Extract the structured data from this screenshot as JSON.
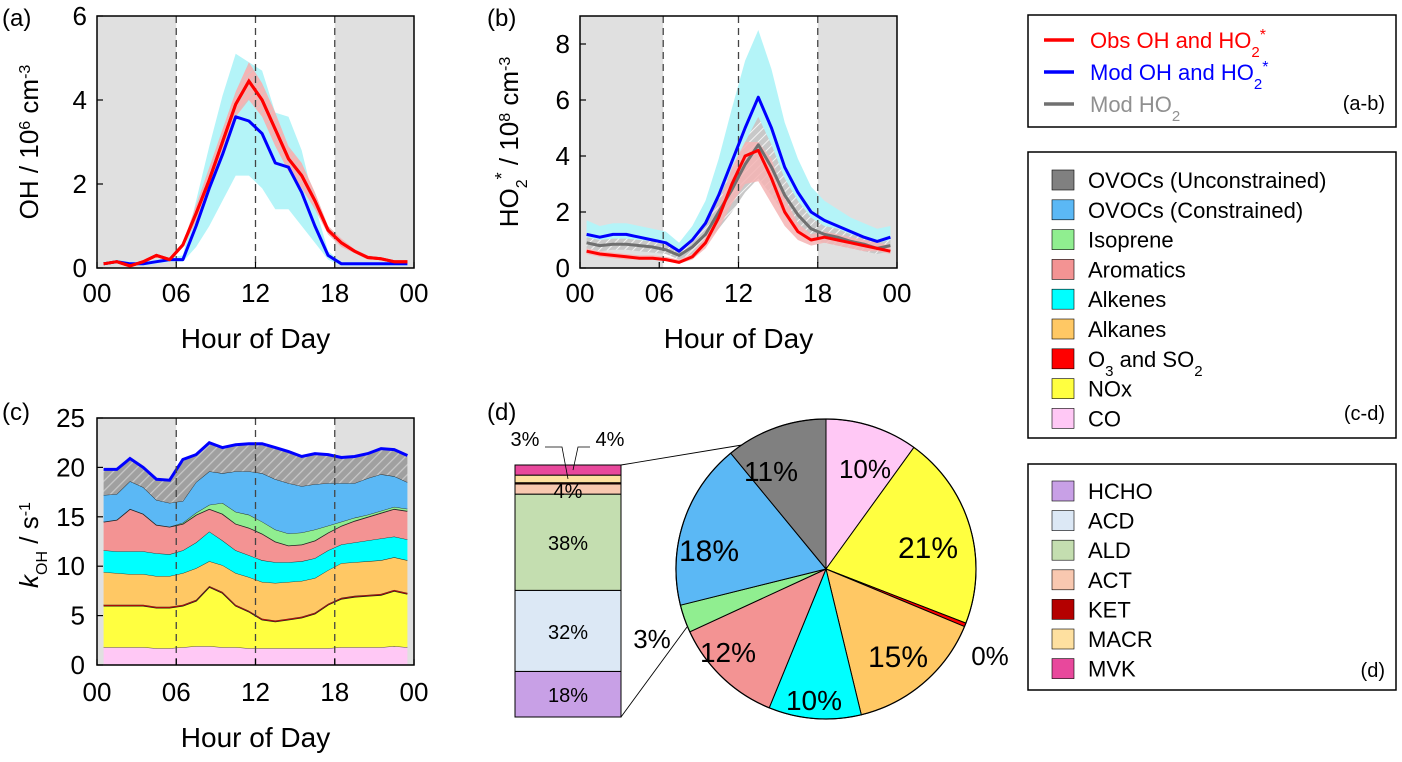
{
  "chart_data": [
    {
      "panel": "(a)",
      "type": "line",
      "ylabel_main": "OH / 10",
      "ylabel_exp": "6",
      "ylabel_unit": " cm",
      "ylabel_unit_exp": "-3",
      "xlabel": "Hour of Day",
      "xticks": [
        "00",
        "06",
        "12",
        "18",
        "00"
      ],
      "yticks": [
        "0",
        "2",
        "4",
        "6"
      ],
      "xlim": [
        0,
        24
      ],
      "ylim": [
        0,
        6
      ],
      "night_shading": [
        [
          0,
          6
        ],
        [
          18,
          24
        ]
      ],
      "dashed_lines_at": [
        6,
        12,
        18
      ],
      "series": [
        {
          "id": "obs",
          "x": [
            0.5,
            1.5,
            2.5,
            3.5,
            4.5,
            5.5,
            6.5,
            7.5,
            8.5,
            9.5,
            10.5,
            11.5,
            12.5,
            13.5,
            14.5,
            15.5,
            16.5,
            17.5,
            18.5,
            19.5,
            20.5,
            21.5,
            22.5,
            23.5
          ],
          "y": [
            0.1,
            0.15,
            0.05,
            0.15,
            0.3,
            0.2,
            0.55,
            1.3,
            2.1,
            3.0,
            3.9,
            4.45,
            4.0,
            3.3,
            2.6,
            2.2,
            1.6,
            0.9,
            0.6,
            0.4,
            0.25,
            0.22,
            0.15,
            0.15
          ],
          "band_low": [
            0.1,
            0.15,
            0.05,
            0.15,
            0.3,
            0.2,
            0.5,
            1.1,
            1.9,
            2.8,
            3.6,
            4.0,
            3.6,
            2.9,
            2.3,
            1.9,
            1.4,
            0.8,
            0.5,
            0.35,
            0.2,
            0.2,
            0.12,
            0.12
          ],
          "band_high": [
            0.1,
            0.15,
            0.05,
            0.15,
            0.3,
            0.2,
            0.6,
            1.5,
            2.4,
            3.3,
            4.2,
            4.9,
            4.4,
            3.7,
            2.9,
            2.5,
            1.8,
            1.0,
            0.7,
            0.45,
            0.3,
            0.25,
            0.18,
            0.18
          ]
        },
        {
          "id": "mod",
          "x": [
            0.5,
            1.5,
            2.5,
            3.5,
            4.5,
            5.5,
            6.5,
            7.5,
            8.5,
            9.5,
            10.5,
            11.5,
            12.5,
            13.5,
            14.5,
            15.5,
            16.5,
            17.5,
            18.5,
            19.5,
            20.5,
            21.5,
            22.5,
            23.5
          ],
          "y": [
            0.1,
            0.15,
            0.1,
            0.1,
            0.15,
            0.2,
            0.2,
            1.0,
            1.9,
            2.7,
            3.6,
            3.5,
            3.2,
            2.5,
            2.4,
            1.8,
            1.0,
            0.3,
            0.1,
            0.1,
            0.1,
            0.1,
            0.1,
            0.1
          ],
          "band_low": [
            0.05,
            0.1,
            0.05,
            0.05,
            0.1,
            0.15,
            0.15,
            0.5,
            1.0,
            1.6,
            2.2,
            2.2,
            1.9,
            1.4,
            1.4,
            1.0,
            0.6,
            0.2,
            0.05,
            0.05,
            0.05,
            0.05,
            0.05,
            0.05
          ],
          "band_high": [
            0.15,
            0.2,
            0.15,
            0.15,
            0.2,
            0.25,
            0.3,
            1.6,
            2.9,
            4.1,
            5.1,
            4.9,
            4.7,
            3.7,
            3.6,
            2.8,
            1.5,
            0.4,
            0.15,
            0.15,
            0.15,
            0.15,
            0.15,
            0.15
          ]
        }
      ]
    },
    {
      "panel": "(b)",
      "type": "line",
      "ylabel_main": "HO",
      "ylabel_sub": "2",
      "ylabel_sup": "*",
      "ylabel_rest": " / 10",
      "ylabel_exp": "8",
      "ylabel_unit": " cm",
      "ylabel_unit_exp": "-3",
      "xlabel": "Hour of Day",
      "xticks": [
        "00",
        "06",
        "12",
        "18",
        "00"
      ],
      "yticks": [
        "0",
        "2",
        "4",
        "6",
        "8"
      ],
      "xlim": [
        0,
        24
      ],
      "ylim": [
        0,
        9
      ],
      "night_shading": [
        [
          0,
          6.3
        ],
        [
          18,
          24
        ]
      ],
      "dashed_lines_at": [
        6.3,
        12,
        18
      ],
      "series": [
        {
          "id": "obs",
          "x": [
            0.5,
            1.5,
            2.5,
            3.5,
            4.5,
            5.5,
            6.5,
            7.5,
            8.5,
            9.5,
            10.5,
            11.5,
            12.5,
            13.5,
            14.5,
            15.5,
            16.5,
            17.5,
            18.5,
            19.5,
            20.5,
            21.5,
            22.5,
            23.5
          ],
          "y": [
            0.6,
            0.5,
            0.45,
            0.4,
            0.35,
            0.35,
            0.3,
            0.2,
            0.4,
            0.9,
            1.8,
            3.0,
            4.0,
            4.2,
            3.2,
            2.0,
            1.3,
            1.0,
            1.1,
            1.0,
            0.9,
            0.8,
            0.7,
            0.6
          ],
          "band_low": [
            0.5,
            0.4,
            0.35,
            0.3,
            0.3,
            0.3,
            0.25,
            0.15,
            0.3,
            0.7,
            1.4,
            2.3,
            3.0,
            3.1,
            2.3,
            1.5,
            1.0,
            0.8,
            0.9,
            0.8,
            0.7,
            0.6,
            0.6,
            0.5
          ],
          "band_high": [
            0.7,
            0.6,
            0.55,
            0.5,
            0.45,
            0.45,
            0.4,
            0.3,
            0.5,
            1.1,
            2.2,
            3.6,
            4.5,
            4.5,
            3.9,
            2.5,
            1.6,
            1.2,
            1.3,
            1.2,
            1.1,
            1.0,
            0.9,
            0.8
          ]
        },
        {
          "id": "mod",
          "x": [
            0.5,
            1.5,
            2.5,
            3.5,
            4.5,
            5.5,
            6.5,
            7.5,
            8.5,
            9.5,
            10.5,
            11.5,
            12.5,
            13.5,
            14.5,
            15.5,
            16.5,
            17.5,
            18.5,
            19.5,
            20.5,
            21.5,
            22.5,
            23.5
          ],
          "y": [
            1.2,
            1.1,
            1.2,
            1.2,
            1.1,
            1.0,
            0.9,
            0.6,
            1.0,
            1.6,
            2.6,
            3.8,
            5.0,
            6.1,
            5.0,
            3.6,
            2.7,
            2.0,
            1.7,
            1.5,
            1.3,
            1.1,
            0.95,
            1.1
          ],
          "band_low": [
            0.9,
            0.8,
            0.9,
            0.9,
            0.8,
            0.75,
            0.65,
            0.4,
            0.7,
            1.1,
            1.8,
            2.6,
            3.5,
            4.3,
            3.5,
            2.5,
            1.9,
            1.4,
            1.2,
            1.1,
            1.0,
            0.8,
            0.7,
            0.8
          ],
          "band_high": [
            1.7,
            1.5,
            1.6,
            1.6,
            1.5,
            1.4,
            1.3,
            0.9,
            1.5,
            2.4,
            3.9,
            5.7,
            7.4,
            8.5,
            7.1,
            5.2,
            3.9,
            2.9,
            2.4,
            2.1,
            1.8,
            1.6,
            1.4,
            1.5
          ]
        },
        {
          "id": "modho2",
          "x": [
            0.5,
            1.5,
            2.5,
            3.5,
            4.5,
            5.5,
            6.5,
            7.5,
            8.5,
            9.5,
            10.5,
            11.5,
            12.5,
            13.5,
            14.5,
            15.5,
            16.5,
            17.5,
            18.5,
            19.5,
            20.5,
            21.5,
            22.5,
            23.5
          ],
          "y": [
            0.9,
            0.8,
            0.85,
            0.85,
            0.8,
            0.75,
            0.65,
            0.45,
            0.75,
            1.2,
            2.0,
            2.8,
            3.7,
            4.4,
            3.6,
            2.6,
            1.9,
            1.4,
            1.2,
            1.1,
            0.95,
            0.85,
            0.7,
            0.8
          ],
          "band_low": [
            0.7,
            0.6,
            0.65,
            0.65,
            0.6,
            0.55,
            0.5,
            0.3,
            0.5,
            0.9,
            1.4,
            2.0,
            2.7,
            3.2,
            2.6,
            1.9,
            1.4,
            1.0,
            0.9,
            0.8,
            0.7,
            0.6,
            0.5,
            0.6
          ],
          "band_high": [
            1.1,
            1.0,
            1.05,
            1.05,
            1.0,
            0.95,
            0.85,
            0.6,
            0.95,
            1.5,
            2.5,
            3.5,
            4.5,
            5.4,
            4.4,
            3.2,
            2.4,
            1.8,
            1.5,
            1.4,
            1.2,
            1.1,
            0.9,
            1.0
          ]
        }
      ]
    },
    {
      "panel": "(c)",
      "type": "area",
      "ylabel_k": "k",
      "ylabel_sub": "OH",
      "ylabel_rest": " / s",
      "ylabel_exp": "-1",
      "xlabel": "Hour of Day",
      "xticks": [
        "00",
        "06",
        "12",
        "18",
        "00"
      ],
      "yticks": [
        "0",
        "5",
        "10",
        "15",
        "20",
        "25"
      ],
      "xlim": [
        0,
        24
      ],
      "ylim": [
        0,
        25
      ],
      "night_shading": [
        [
          0,
          6
        ],
        [
          18,
          24
        ]
      ],
      "dashed_lines_at": [
        6,
        12,
        18
      ],
      "x": [
        0.5,
        1.5,
        2.5,
        3.5,
        4.5,
        5.5,
        6.5,
        7.5,
        8.5,
        9.5,
        10.5,
        11.5,
        12.5,
        13.5,
        14.5,
        15.5,
        16.5,
        17.5,
        18.5,
        19.5,
        20.5,
        21.5,
        22.5,
        23.5
      ],
      "stack_order": [
        "CO",
        "NOx",
        "O3 and SO2",
        "Alkanes",
        "Alkenes",
        "Aromatics",
        "Isoprene",
        "OVOCs (Constrained)",
        "OVOCs (Unconstrained)"
      ],
      "stack_tops": {
        "CO": [
          1.8,
          1.8,
          1.8,
          1.8,
          1.7,
          1.7,
          1.8,
          1.9,
          1.9,
          1.8,
          1.8,
          1.7,
          1.7,
          1.7,
          1.7,
          1.7,
          1.7,
          1.7,
          1.8,
          1.8,
          1.8,
          1.8,
          1.9,
          1.8
        ],
        "NOx": [
          6.0,
          6.0,
          6.0,
          6.0,
          5.8,
          5.8,
          6.0,
          6.5,
          7.9,
          7.3,
          6.0,
          5.4,
          4.6,
          4.4,
          4.6,
          4.8,
          5.2,
          6.1,
          6.7,
          6.9,
          7.0,
          7.1,
          7.5,
          7.2
        ],
        "O3 and SO2": [
          6.1,
          6.1,
          6.1,
          6.1,
          5.9,
          5.9,
          6.1,
          6.6,
          8.0,
          7.4,
          6.1,
          5.5,
          4.7,
          4.5,
          4.7,
          4.9,
          5.3,
          6.2,
          6.8,
          7.0,
          7.1,
          7.2,
          7.6,
          7.3
        ],
        "Alkanes": [
          9.4,
          9.3,
          9.2,
          9.2,
          9.0,
          9.0,
          9.3,
          9.8,
          10.5,
          10.1,
          9.3,
          8.9,
          8.4,
          8.3,
          8.4,
          8.5,
          8.8,
          9.6,
          10.3,
          10.4,
          10.5,
          10.6,
          10.9,
          10.6
        ],
        "Alkenes": [
          11.6,
          11.5,
          11.5,
          11.5,
          11.3,
          11.2,
          11.6,
          12.4,
          13.5,
          12.6,
          11.6,
          11.1,
          10.6,
          10.4,
          10.4,
          10.5,
          10.8,
          11.6,
          12.2,
          12.4,
          12.6,
          12.8,
          13.0,
          12.7
        ],
        "Aromatics": [
          14.5,
          14.7,
          15.8,
          15.3,
          14.2,
          14.0,
          14.3,
          15.2,
          15.8,
          15.3,
          14.3,
          13.9,
          13.3,
          12.5,
          12.1,
          12.2,
          12.6,
          13.4,
          14.1,
          14.6,
          15.0,
          15.4,
          15.8,
          15.6
        ],
        "Isoprene": [
          14.5,
          14.7,
          15.8,
          15.3,
          14.2,
          14.0,
          14.4,
          15.4,
          16.2,
          16.4,
          15.5,
          15.2,
          14.5,
          13.7,
          13.3,
          13.4,
          13.7,
          14.1,
          14.5,
          14.9,
          15.2,
          15.6,
          16.0,
          15.8
        ],
        "OVOCs (Constrained)": [
          17.2,
          17.3,
          18.6,
          18.0,
          16.7,
          16.4,
          16.6,
          18.5,
          19.6,
          19.4,
          19.6,
          19.6,
          19.4,
          18.8,
          18.4,
          18.1,
          18.3,
          18.4,
          18.4,
          18.4,
          18.9,
          19.3,
          19.1,
          18.5
        ],
        "OVOCs (Unconstrained)": [
          19.8,
          19.8,
          20.9,
          20.0,
          18.8,
          18.7,
          20.8,
          21.3,
          22.5,
          22.0,
          22.3,
          22.4,
          22.4,
          22.0,
          21.6,
          21.1,
          21.4,
          21.3,
          21.0,
          21.1,
          21.4,
          21.9,
          21.8,
          21.2
        ]
      }
    },
    {
      "panel": "(d)",
      "type": "pie",
      "slices": [
        {
          "name": "CO",
          "value": 10,
          "label": "10%"
        },
        {
          "name": "NOx",
          "value": 21,
          "label": "21%"
        },
        {
          "name": "O3 and SO2",
          "value": 0.4,
          "label": "0%"
        },
        {
          "name": "Alkanes",
          "value": 15,
          "label": "15%"
        },
        {
          "name": "Alkenes",
          "value": 10,
          "label": "10%"
        },
        {
          "name": "Aromatics",
          "value": 12,
          "label": "12%"
        },
        {
          "name": "Isoprene",
          "value": 3,
          "label": "3%"
        },
        {
          "name": "OVOCs (Constrained)",
          "value": 18,
          "label": "18%"
        },
        {
          "name": "OVOCs (Unconstrained)",
          "value": 11,
          "label": "11%"
        }
      ],
      "breakdown_bar": [
        {
          "name": "HCHO",
          "value": 18,
          "label": "18%"
        },
        {
          "name": "ACD",
          "value": 32,
          "label": "32%"
        },
        {
          "name": "ALD",
          "value": 38,
          "label": "38%"
        },
        {
          "name": "ACT",
          "value": 4,
          "label": "4%"
        },
        {
          "name": "KET",
          "value": 0.5,
          "label": ""
        },
        {
          "name": "MACR",
          "value": 3,
          "label": "3%"
        },
        {
          "name": "MVK",
          "value": 4,
          "label": "4%"
        }
      ]
    }
  ],
  "panel_labels": {
    "a": "(a)",
    "b": "(b)",
    "c": "(c)",
    "d": "(d)"
  },
  "legend_ab": {
    "tag": "(a-b)",
    "items": [
      {
        "id": "obs",
        "text": "Obs OH and HO",
        "sub": "2",
        "sup": "*",
        "color": "#ff0000",
        "text_color": "#ff0000"
      },
      {
        "id": "mod",
        "text": "Mod OH and HO",
        "sub": "2",
        "sup": "*",
        "color": "#0000ff",
        "text_color": "#0000ff"
      },
      {
        "id": "modho2",
        "text": "Mod HO",
        "sub": "2",
        "sup": "",
        "color": "#707070",
        "text_color": "#909090"
      }
    ]
  },
  "legend_cd": {
    "tag": "(c-d)",
    "items": [
      {
        "name": "OVOCs (Unconstrained)",
        "text": "OVOCs (Unconstrained)",
        "color": "#808080"
      },
      {
        "name": "OVOCs (Constrained)",
        "text": "OVOCs (Constrained)",
        "color": "#5bb8f5"
      },
      {
        "name": "Isoprene",
        "text": "Isoprene",
        "color": "#90ee90"
      },
      {
        "name": "Aromatics",
        "text": "Aromatics",
        "color": "#f39393"
      },
      {
        "name": "Alkenes",
        "text": "Alkenes",
        "color": "#00ffff"
      },
      {
        "name": "Alkanes",
        "text": "Alkanes",
        "color": "#ffc864"
      },
      {
        "name": "O3 and SO2",
        "text": "O",
        "sub": "3",
        "text2": " and SO",
        "sub2": "2",
        "color": "#ff0000"
      },
      {
        "name": "NOx",
        "text": "NOx",
        "color": "#ffff40"
      },
      {
        "name": "CO",
        "text": "CO",
        "color": "#ffc8f5"
      }
    ]
  },
  "legend_d": {
    "tag": "(d)",
    "items": [
      {
        "name": "HCHO",
        "text": "HCHO",
        "color": "#c8a0e6"
      },
      {
        "name": "ACD",
        "text": "ACD",
        "color": "#dce8f5"
      },
      {
        "name": "ALD",
        "text": "ALD",
        "color": "#c4deb0"
      },
      {
        "name": "ACT",
        "text": "ACT",
        "color": "#f8c8b0"
      },
      {
        "name": "KET",
        "text": "KET",
        "color": "#b40000"
      },
      {
        "name": "MACR",
        "text": "MACR",
        "color": "#fee0a0"
      },
      {
        "name": "MVK",
        "text": "MVK",
        "color": "#e8489c"
      }
    ]
  },
  "colors": {
    "obs": "#ff0000",
    "mod": "#0000ff",
    "modho2": "#707070",
    "obs_band": "#f4b4b4",
    "mod_band": "#b4f4f8",
    "modho2_band": "#c8c8c8",
    "night": "#e0e0e0"
  }
}
